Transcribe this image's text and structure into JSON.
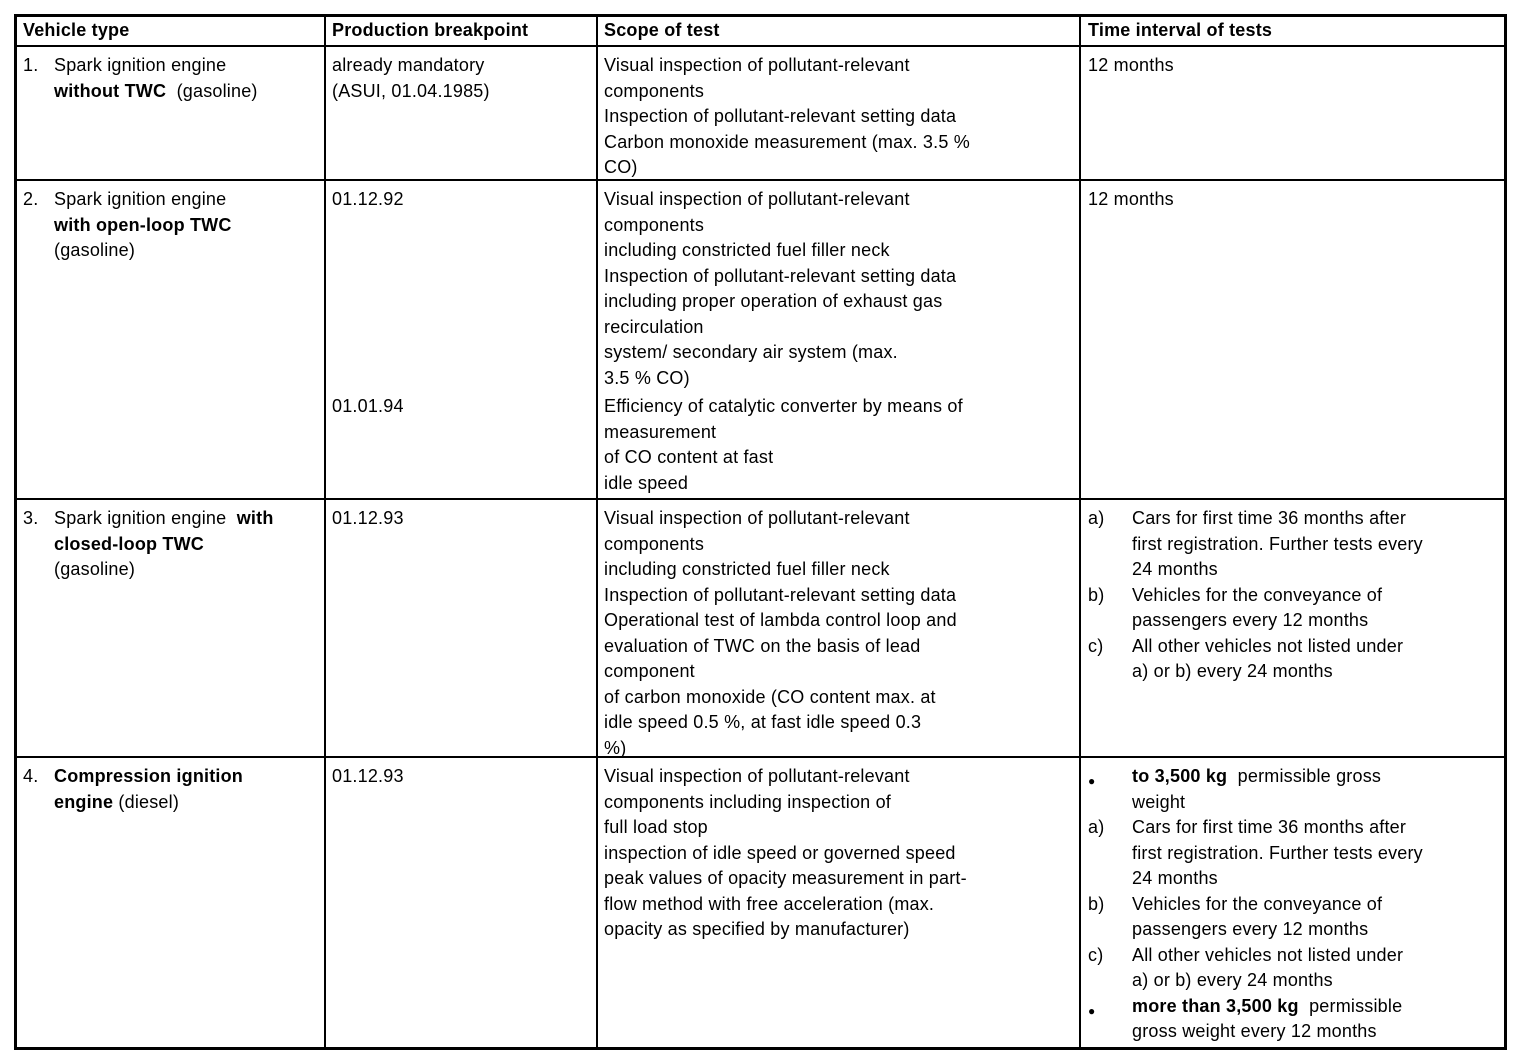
{
  "table": {
    "columns": [
      "Vehicle type",
      "Production breakpoint",
      "Scope of test",
      "Time interval of tests"
    ],
    "rows": [
      {
        "number": "1.",
        "vehicle_pre": "Spark ignition engine\n",
        "vehicle_bold": "without TWC",
        "vehicle_post": "  (gasoline)",
        "breakpoint1": "already mandatory\n(ASUI, 01.04.1985)",
        "scope1": "Visual inspection of pollutant-relevant\ncomponents\nInspection of pollutant-relevant setting data\nCarbon monoxide measurement (max. 3.5 %\nCO)",
        "interval_text": "12 months"
      },
      {
        "number": "2.",
        "vehicle_pre": "Spark ignition engine\n",
        "vehicle_bold": "with open-loop TWC",
        "vehicle_post": "\n(gasoline)",
        "breakpoint1": "01.12.92",
        "breakpoint2": "01.01.94",
        "scope1": "Visual inspection of pollutant-relevant\ncomponents\nincluding constricted fuel filler neck\nInspection of pollutant-relevant setting data\nincluding proper operation of exhaust gas\nrecirculation\nsystem/ secondary air system (max.\n3.5 % CO)",
        "scope2": "Efficiency of catalytic converter by means of\nmeasurement\nof CO content at fast\nidle speed",
        "interval_text": "12 months"
      },
      {
        "number": "3.",
        "vehicle_pre": "Spark ignition engine  ",
        "vehicle_bold": "with\nclosed-loop TWC",
        "vehicle_post": "\n(gasoline)",
        "breakpoint1": "01.12.93",
        "scope1": "Visual inspection of pollutant-relevant\ncomponents\nincluding constricted fuel filler neck\nInspection of pollutant-relevant setting data\nOperational test of lambda control loop and\nevaluation of TWC on the basis of lead\ncomponent\nof carbon monoxide (CO content max. at\nidle speed 0.5 %, at fast idle speed 0.3\n%)",
        "interval_items": [
          {
            "marker": "a)",
            "text": "Cars for first time 36 months after\nfirst registration. Further tests every\n24 months"
          },
          {
            "marker": "b)",
            "text": "Vehicles for the conveyance of\npassengers every 12 months"
          },
          {
            "marker": "c)",
            "text": "All other vehicles not listed under\na) or b) every 24 months"
          }
        ]
      },
      {
        "number": "4.",
        "vehicle_pre": "",
        "vehicle_bold": "Compression ignition\nengine",
        "vehicle_post": " (diesel)",
        "breakpoint1": "01.12.93",
        "scope1": "Visual inspection of pollutant-relevant\ncomponents including inspection of\nfull load stop\ninspection of idle speed or governed speed\npeak values of opacity measurement in part-\nflow method with free acceleration (max.\nopacity as specified by manufacturer)",
        "interval_items": [
          {
            "marker": "●",
            "bold": "to 3,500 kg",
            "text": "  permissible gross\nweight"
          },
          {
            "marker": "a)",
            "text": "Cars for first time 36 months after\nfirst registration. Further tests every\n24 months"
          },
          {
            "marker": "b)",
            "text": "Vehicles for the conveyance of\npassengers every 12 months"
          },
          {
            "marker": "c)",
            "text": "All other vehicles not listed under\na) or b) every 24 months"
          },
          {
            "marker": "●",
            "bold": "more than 3,500 kg",
            "text": "  permissible\ngross weight every 12 months"
          }
        ]
      }
    ]
  }
}
